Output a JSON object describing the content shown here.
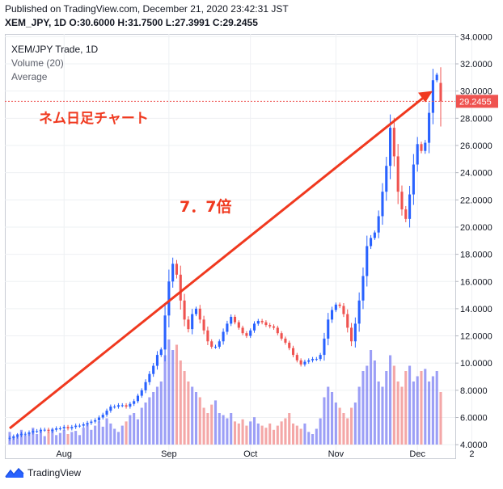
{
  "header": {
    "published": "Published on TradingView.com, December 21, 2020 23:42:31 JST",
    "ohlc": "XEM_JPY, 1D O:30.6000 H:31.7500 L:27.3991 C:29.2455"
  },
  "legend": {
    "title": "XEM/JPY Trade, 1D",
    "volume": "Volume (20)",
    "average": "Average"
  },
  "price_tag": "29.2455",
  "annotations": {
    "chart_label": "ネム日足チャート",
    "multiple": "7．7倍"
  },
  "footer": {
    "brand": "TradingView"
  },
  "colors": {
    "up": "#2962ff",
    "down": "#ef5350",
    "arrow": "#f0391f",
    "grid": "#eef0f3"
  },
  "chart_data": {
    "type": "candlestick",
    "y_axis": {
      "ticks": [
        "34.0000",
        "32.0000",
        "30.0000",
        "28.0000",
        "26.0000",
        "24.0000",
        "22.0000",
        "20.0000",
        "18.0000",
        "16.0000",
        "14.0000",
        "12.0000",
        "10.0000",
        "8.0000",
        "6.0000",
        "4.0000"
      ],
      "range": [
        3.0,
        34.2
      ]
    },
    "x_axis": {
      "ticks": [
        "Aug",
        "Sep",
        "Oct",
        "Nov",
        "Dec",
        "2"
      ]
    },
    "last_close": 29.2455,
    "ohlc_last": {
      "open": 30.6,
      "high": 31.75,
      "low": 27.3991,
      "close": 29.2455
    },
    "closes": [
      4.5,
      4.6,
      4.7,
      4.8,
      4.8,
      4.9,
      5.0,
      5.0,
      5.1,
      5.1,
      5.0,
      5.1,
      5.2,
      5.2,
      5.3,
      5.2,
      5.3,
      5.4,
      5.4,
      5.5,
      5.6,
      5.7,
      5.8,
      6.0,
      6.2,
      6.5,
      6.8,
      6.8,
      6.9,
      6.9,
      6.8,
      7.0,
      7.2,
      7.6,
      8.0,
      8.6,
      9.2,
      9.8,
      10.6,
      11.0,
      13.5,
      16.0,
      17.3,
      16.5,
      14.6,
      13.2,
      12.5,
      13.6,
      14.0,
      13.2,
      12.4,
      11.6,
      11.2,
      11.2,
      11.6,
      12.3,
      12.9,
      13.4,
      13.0,
      12.6,
      12.2,
      12.0,
      12.4,
      12.9,
      13.1,
      13.0,
      12.8,
      12.7,
      12.6,
      12.2,
      11.8,
      11.5,
      11.1,
      10.6,
      10.2,
      9.9,
      10.1,
      10.2,
      10.3,
      10.3,
      10.6,
      11.8,
      13.2,
      13.9,
      14.3,
      14.2,
      13.6,
      12.6,
      11.6,
      12.9,
      14.6,
      16.4,
      18.6,
      19.2,
      19.6,
      20.8,
      22.6,
      24.5,
      27.3,
      25.2,
      22.6,
      21.3,
      20.6,
      22.4,
      24.6,
      26.1,
      25.6,
      26.2,
      28.4,
      30.8,
      31.2,
      29.2455
    ],
    "volume_levels": [
      0.12,
      0.08,
      0.1,
      0.14,
      0.09,
      0.11,
      0.16,
      0.1,
      0.13,
      0.08,
      0.12,
      0.15,
      0.09,
      0.11,
      0.14,
      0.1,
      0.12,
      0.13,
      0.09,
      0.16,
      0.2,
      0.14,
      0.18,
      0.22,
      0.17,
      0.25,
      0.2,
      0.15,
      0.12,
      0.18,
      0.22,
      0.28,
      0.3,
      0.24,
      0.35,
      0.4,
      0.45,
      0.5,
      0.55,
      0.6,
      0.85,
      1.0,
      0.9,
      0.95,
      0.8,
      0.7,
      0.6,
      0.55,
      0.5,
      0.45,
      0.35,
      0.3,
      0.38,
      0.42,
      0.3,
      0.28,
      0.25,
      0.3,
      0.22,
      0.2,
      0.24,
      0.18,
      0.22,
      0.26,
      0.2,
      0.18,
      0.16,
      0.2,
      0.14,
      0.18,
      0.22,
      0.25,
      0.3,
      0.2,
      0.18,
      0.15,
      0.2,
      0.12,
      0.1,
      0.15,
      0.25,
      0.45,
      0.55,
      0.5,
      0.4,
      0.35,
      0.3,
      0.25,
      0.35,
      0.4,
      0.55,
      0.7,
      0.75,
      0.9,
      0.8,
      0.6,
      0.55,
      0.7,
      0.85,
      0.75,
      0.6,
      0.55,
      0.7,
      0.75,
      0.6,
      0.65,
      0.7,
      0.72,
      0.6,
      0.65,
      0.7,
      0.5
    ]
  }
}
